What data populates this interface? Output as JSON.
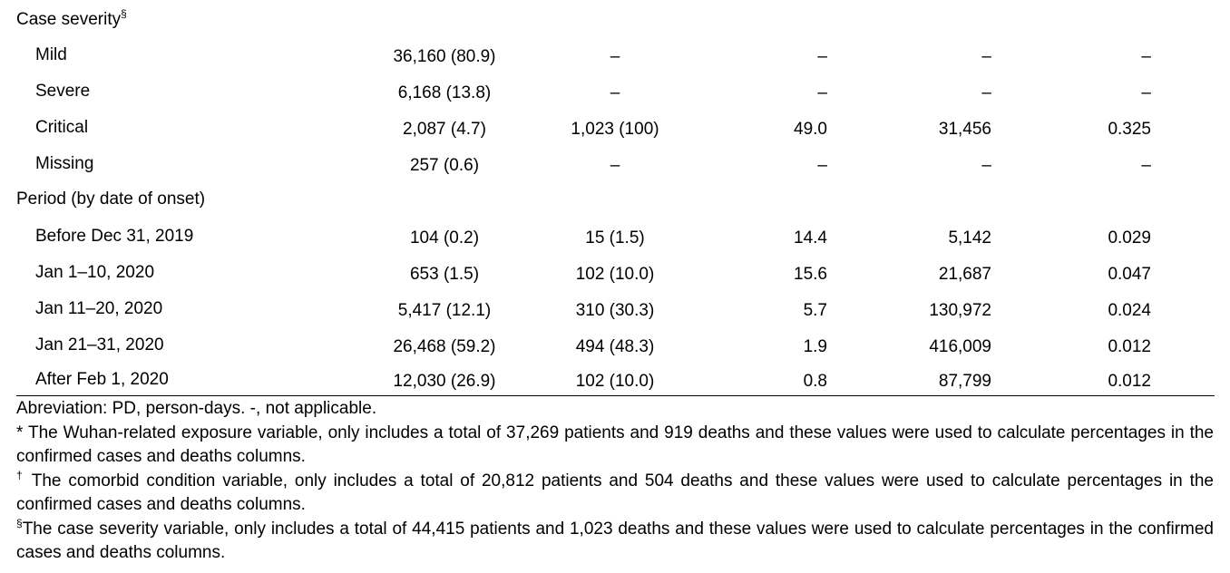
{
  "sections": [
    {
      "title": "Case severity",
      "title_mark": "§",
      "rows": [
        {
          "label": "Mild",
          "cases": "36,160 (80.9)",
          "deaths": "–",
          "cfr": "–",
          "pd": "–",
          "mortality": "–"
        },
        {
          "label": "Severe",
          "cases": "6,168 (13.8)",
          "deaths": "–",
          "cfr": "–",
          "pd": "–",
          "mortality": "–"
        },
        {
          "label": "Critical",
          "cases": "2,087 (4.7)",
          "deaths": "1,023 (100)",
          "cfr": "49.0",
          "pd": "31,456",
          "mortality": "0.325"
        },
        {
          "label": "Missing",
          "cases": "257 (0.6)",
          "deaths": "–",
          "cfr": "–",
          "pd": "–",
          "mortality": "–"
        }
      ]
    },
    {
      "title": "Period (by date of onset)",
      "title_mark": "",
      "rows": [
        {
          "label": "Before Dec 31, 2019",
          "cases": "104 (0.2)",
          "deaths": "15 (1.5)",
          "cfr": "14.4",
          "pd": "5,142",
          "mortality": "0.029"
        },
        {
          "label": "Jan 1–10, 2020",
          "cases": "653 (1.5)",
          "deaths": "102 (10.0)",
          "cfr": "15.6",
          "pd": "21,687",
          "mortality": "0.047"
        },
        {
          "label": "Jan 11–20, 2020",
          "cases": "5,417 (12.1)",
          "deaths": "310 (30.3)",
          "cfr": "5.7",
          "pd": "130,972",
          "mortality": "0.024"
        },
        {
          "label": "Jan 21–31, 2020",
          "cases": "26,468 (59.2)",
          "deaths": "494 (48.3)",
          "cfr": "1.9",
          "pd": "416,009",
          "mortality": "0.012"
        },
        {
          "label": "After Feb 1, 2020",
          "cases": "12,030 (26.9)",
          "deaths": "102 (10.0)",
          "cfr": "0.8",
          "pd": "87,799",
          "mortality": "0.012"
        }
      ]
    }
  ],
  "footnotes": {
    "abbreviation": "Abreviation: PD, person-days. -, not applicable.",
    "note1_mark": "*",
    "note1_text": "The Wuhan-related exposure variable, only includes a total of 37,269 patients and 919 deaths and these values were used to calculate percentages in the confirmed cases and deaths columns.",
    "note2_mark": "†",
    "note2_text": "The comorbid condition variable, only includes a total of 20,812 patients and 504 deaths and these values were used to calculate percentages in the confirmed cases and deaths columns.",
    "note3_mark": "§",
    "note3_text": "The case severity variable, only includes a total of 44,415 patients and 1,023 deaths and these values were used to calculate percentages in the confirmed cases and deaths columns."
  }
}
